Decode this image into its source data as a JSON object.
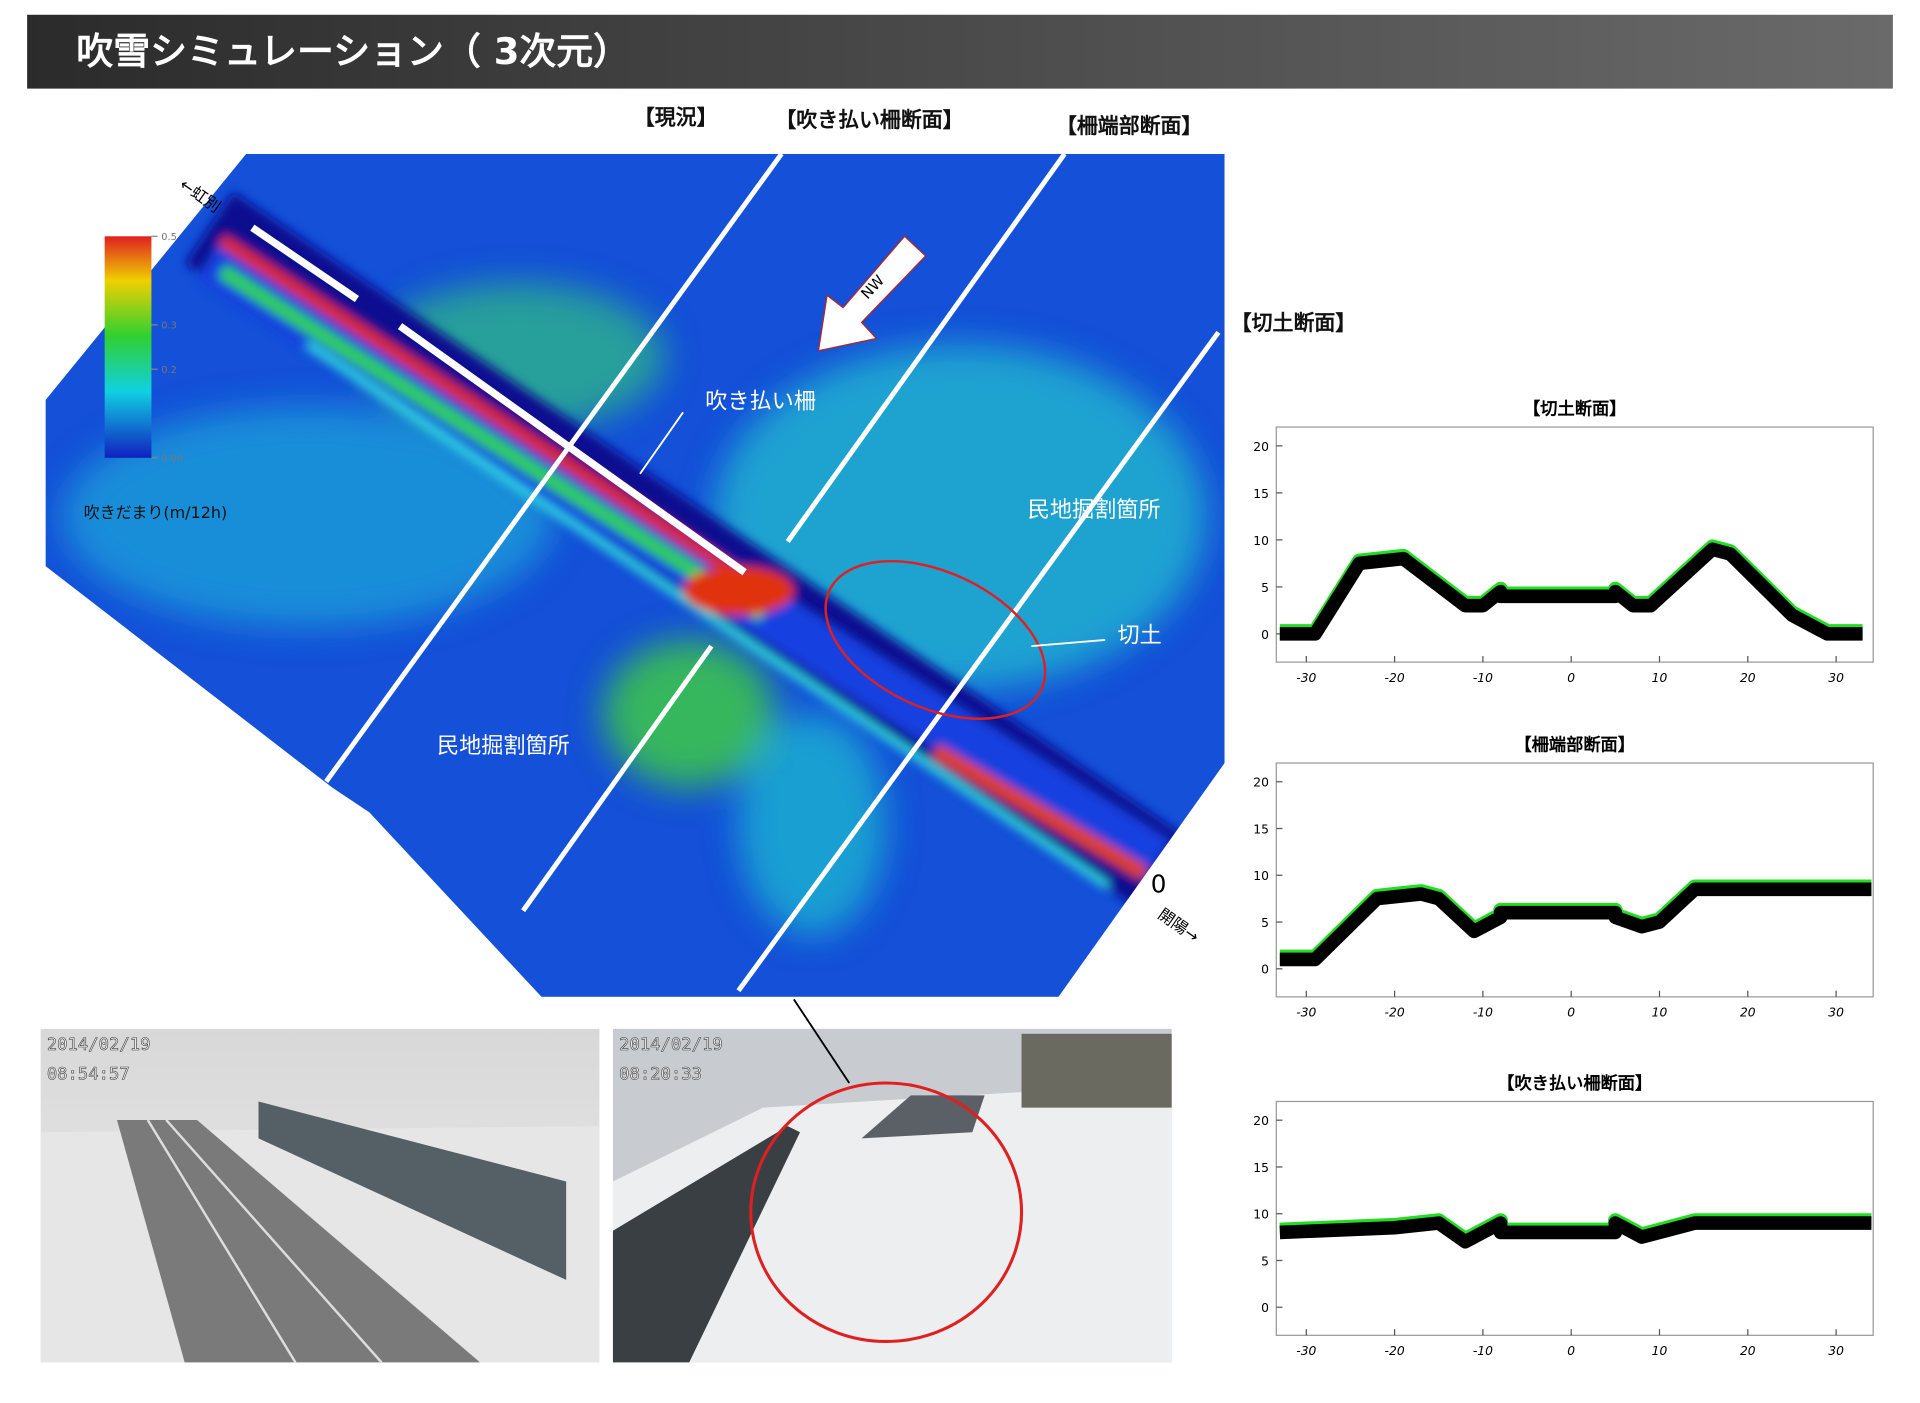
{
  "header": {
    "title": "吹雪シミュレーション（ 3次元）"
  },
  "simulation": {
    "section_labels": [
      "【現況】",
      "【吹き払い柵断面】",
      "【柵端部断面】",
      "【切土断面】"
    ],
    "annotations": {
      "fence": "吹き払い柵",
      "private_cut_1": "民地掘割箇所",
      "private_cut_2": "民地掘割箇所",
      "cut": "切土",
      "wind": "NW",
      "west": "←虹別",
      "east": "開陽→",
      "origin": "0"
    },
    "colorbar": {
      "label": "吹きだまり(m/12h)",
      "lim": [
        0,
        0.5
      ],
      "ticks": [
        0.5,
        0.3,
        0.2,
        {
          "value": 0,
          "label": "0.00"
        }
      ]
    }
  },
  "photos": [
    {
      "date": "2014/02/19",
      "time": "08:54:57"
    },
    {
      "date": "2014/02/19",
      "time": "08:20:33"
    }
  ],
  "chart_data": [
    {
      "type": "line",
      "title": "【切土断面】",
      "color": "#000000",
      "x": [
        -33,
        -29,
        -24,
        -19,
        -12,
        -10,
        -8,
        -8,
        5,
        5,
        7,
        9,
        16,
        18,
        25,
        29,
        33
      ],
      "values": [
        0,
        0,
        7.5,
        8,
        3,
        3,
        4.5,
        4,
        4,
        4.5,
        3,
        3,
        9,
        8.5,
        2,
        0,
        0
      ],
      "xlim": [
        -33.4,
        34.2
      ],
      "ylim": [
        -3,
        22
      ],
      "xticks": [
        -30,
        -20,
        -10,
        0,
        10,
        20,
        30
      ],
      "yticks": [
        0,
        5,
        10,
        15,
        20
      ]
    },
    {
      "type": "line",
      "title": "【柵端部断面】",
      "color": "#000000",
      "x": [
        -33,
        -29,
        -22,
        -17,
        -15,
        -11,
        -10,
        -8,
        -8,
        5,
        5,
        8,
        10,
        14,
        34
      ],
      "values": [
        1,
        1,
        7.5,
        8,
        7.5,
        4,
        4.5,
        5.5,
        6,
        6,
        5.5,
        4.5,
        5,
        8.5,
        8.5
      ],
      "xlim": [
        -33.4,
        34.2
      ],
      "ylim": [
        -3,
        22
      ],
      "xticks": [
        -30,
        -20,
        -10,
        0,
        10,
        20,
        30
      ],
      "yticks": [
        0,
        5,
        10,
        15,
        20
      ]
    },
    {
      "type": "line",
      "title": "【吹き払い柵断面】",
      "color": "#000000",
      "x": [
        -33,
        -20,
        -15,
        -12,
        -10,
        -8,
        -8,
        5,
        5,
        8,
        10,
        14,
        34
      ],
      "values": [
        8,
        8.5,
        9,
        7,
        8,
        9,
        8,
        8,
        9,
        7.5,
        8,
        9,
        9
      ],
      "xlim": [
        -33.4,
        34.2
      ],
      "ylim": [
        -3,
        22
      ],
      "xticks": [
        -30,
        -20,
        -10,
        0,
        10,
        20,
        30
      ],
      "yticks": [
        0,
        5,
        10,
        15,
        20
      ]
    }
  ]
}
